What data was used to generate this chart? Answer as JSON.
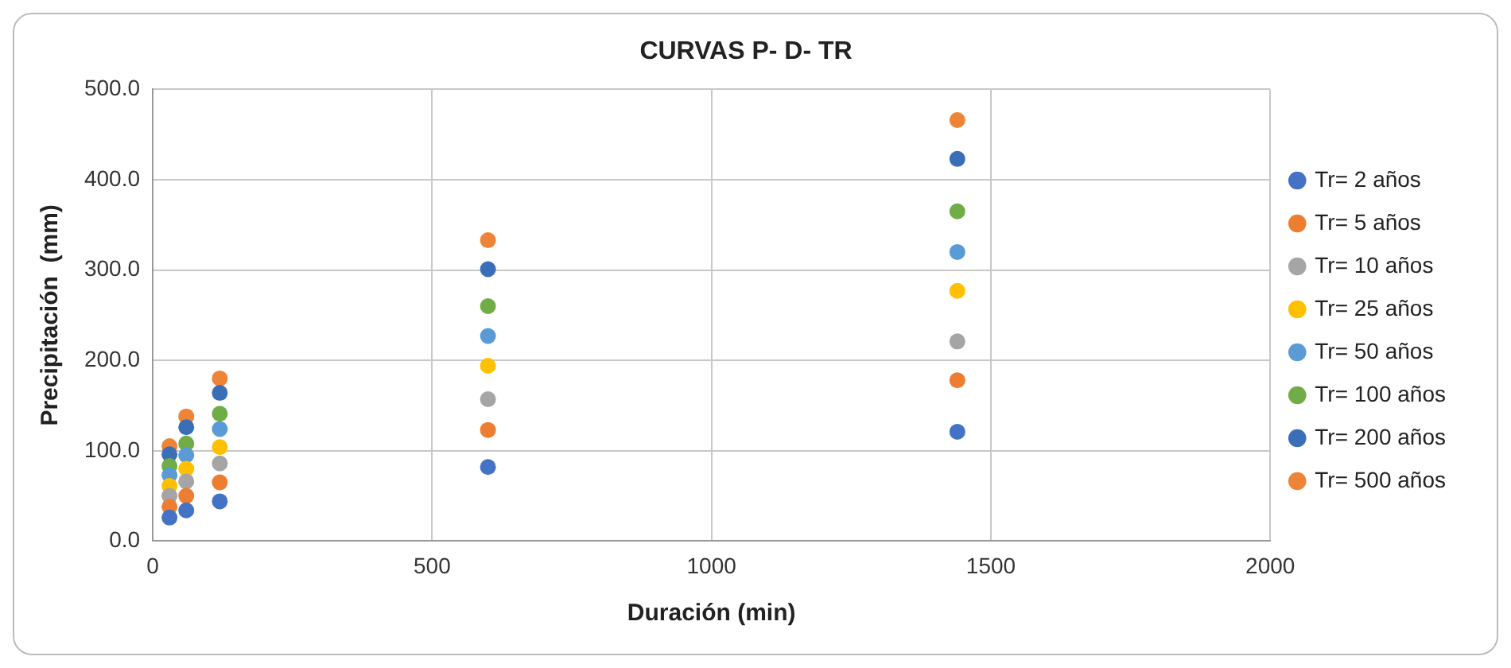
{
  "chart_data": {
    "type": "scatter",
    "title": "CURVAS P- D- TR",
    "xlabel": "Duración (min)",
    "ylabel": "Precipitación  (mm)",
    "xlim": [
      0,
      2000
    ],
    "xticks": [
      0,
      500,
      1000,
      1500,
      2000
    ],
    "ylim": [
      0,
      500
    ],
    "yticks": [
      {
        "value": 0,
        "label": "0.0"
      },
      {
        "value": 100,
        "label": "100.0"
      },
      {
        "value": 200,
        "label": "200.0"
      },
      {
        "value": 300,
        "label": "300.0"
      },
      {
        "value": 400,
        "label": "400.0"
      },
      {
        "value": 500,
        "label": "500.0"
      }
    ],
    "x": [
      30,
      60,
      120,
      600,
      1440
    ],
    "grid": true,
    "legend": "right",
    "marker": "circle",
    "series": [
      {
        "name": "Tr= 2 años",
        "color": "#4472c4",
        "values": [
          26,
          34,
          44,
          82,
          121
        ]
      },
      {
        "name": "Tr= 5 años",
        "color": "#ed7d31",
        "values": [
          38,
          50,
          65,
          123,
          178
        ]
      },
      {
        "name": "Tr= 10 años",
        "color": "#a5a5a5",
        "values": [
          50,
          66,
          86,
          157,
          221
        ]
      },
      {
        "name": "Tr= 25 años",
        "color": "#ffc000",
        "values": [
          61,
          80,
          104,
          194,
          277
        ]
      },
      {
        "name": "Tr= 50 años",
        "color": "#5b9bd5",
        "values": [
          73,
          95,
          124,
          227,
          320
        ]
      },
      {
        "name": "Tr= 100 años",
        "color": "#70ad47",
        "values": [
          83,
          108,
          141,
          260,
          365
        ]
      },
      {
        "name": "Tr= 200 años",
        "color": "#3a6fb7",
        "values": [
          96,
          126,
          164,
          301,
          423
        ]
      },
      {
        "name": "Tr= 500 años",
        "color": "#ee8438",
        "values": [
          105,
          138,
          180,
          333,
          466
        ]
      }
    ]
  }
}
